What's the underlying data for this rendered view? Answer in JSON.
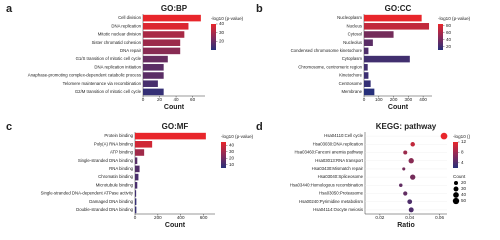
{
  "chart_data": [
    {
      "type": "hbar",
      "panel": "a",
      "title": "GO:BP",
      "xlabel": "Count",
      "legend_title": "-log10 (p-value)",
      "categories": [
        "Cell division",
        "DNA replication",
        "Mitotic nuclear division",
        "Sister chromatid cohesion",
        "DNA repair",
        "G1/S transition of mitotic cell cycle",
        "DNA replication initiation",
        "Anaphase-promoting complex-dependent catabolic process",
        "Telomere maintenance via recombination",
        "G2/M transition of mitotic cell cycle"
      ],
      "values": [
        70,
        55,
        50,
        45,
        45,
        30,
        25,
        25,
        18,
        25
      ],
      "color_values": [
        40,
        38,
        30,
        28,
        25,
        20,
        18,
        18,
        15,
        12
      ],
      "xlim": [
        0,
        75
      ],
      "xticks": [
        0,
        20,
        40,
        60
      ],
      "clim": [
        10,
        40
      ],
      "cticks": [
        20,
        30,
        40
      ],
      "colors": [
        "#e8262b",
        "#27307a"
      ]
    },
    {
      "type": "hbar",
      "panel": "b",
      "title": "GO:CC",
      "xlabel": "Count",
      "legend_title": "-log10 (p-value)",
      "categories": [
        "Nucleoplasm",
        "Nucleus",
        "Cytosol",
        "Nucleolus",
        "Condensed chromosome kinetochore",
        "Cytoplasm",
        "Chromosome, centromeric region",
        "Kinetochore",
        "Centrosome",
        "Membrane"
      ],
      "values": [
        390,
        440,
        200,
        60,
        30,
        310,
        25,
        30,
        45,
        70
      ],
      "color_values": [
        85,
        70,
        40,
        30,
        25,
        20,
        20,
        18,
        15,
        10
      ],
      "xlim": [
        0,
        460
      ],
      "xticks": [
        0,
        100,
        200,
        300,
        400
      ],
      "clim": [
        10,
        85
      ],
      "cticks": [
        20,
        40,
        60,
        80
      ],
      "colors": [
        "#e8262b",
        "#27307a"
      ]
    },
    {
      "type": "hbar",
      "panel": "c",
      "title": "GO:MF",
      "xlabel": "Count",
      "legend_title": "-log10 (p-value)",
      "categories": [
        "Protein binding",
        "Poly(A) RNA binding",
        "ATP binding",
        "Single-stranded DNA binding",
        "RNA binding",
        "Chromatin binding",
        "Microtubule binding",
        "Single-stranded DNA-dependent ATPase activity",
        "Damaged DNA binding",
        "Double-stranded DNA binding"
      ],
      "values": [
        620,
        150,
        80,
        20,
        40,
        30,
        20,
        10,
        12,
        12
      ],
      "color_values": [
        45,
        40,
        30,
        15,
        14,
        12,
        12,
        10,
        8,
        8
      ],
      "xlim": [
        0,
        700
      ],
      "xticks": [
        0,
        200,
        400,
        600
      ],
      "clim": [
        5,
        45
      ],
      "cticks": [
        10,
        20,
        30,
        40
      ],
      "colors": [
        "#e8262b",
        "#27307a"
      ]
    },
    {
      "type": "dot",
      "panel": "d",
      "title": "KEGG: pathway",
      "xlabel": "Ratio",
      "legend_title": "-log10 ()",
      "size_title": "Count",
      "categories": [
        "Hsa04110:Cell cycle",
        "Hsa03030:DNA replication",
        "Hsa03460:Fanconi anemia pathway",
        "Hsa03013:RNA transport",
        "Hsa03430:Mismatch repair",
        "Hsa03040:Spliceosome",
        "Hsa03440:Homologous recombination",
        "Hsa03050:Proteasome",
        "Hsa00240:Pyrimidine metabolism",
        "Hsa04114:Oocyte meiosis"
      ],
      "values": [
        0.063,
        0.042,
        0.037,
        0.041,
        0.036,
        0.042,
        0.034,
        0.037,
        0.04,
        0.041
      ],
      "sizes": [
        55,
        25,
        20,
        35,
        12,
        35,
        15,
        22,
        28,
        30
      ],
      "color_values": [
        12,
        10,
        8,
        7,
        6,
        6,
        5,
        5,
        4,
        4
      ],
      "xlim": [
        0.01,
        0.065
      ],
      "xticks": [
        0.02,
        0.04,
        0.06
      ],
      "clim": [
        2,
        12
      ],
      "cticks": [
        4,
        8,
        12
      ],
      "size_ticks": [
        20,
        30,
        40,
        50
      ],
      "colors": [
        "#e8262b",
        "#27307a"
      ]
    }
  ]
}
